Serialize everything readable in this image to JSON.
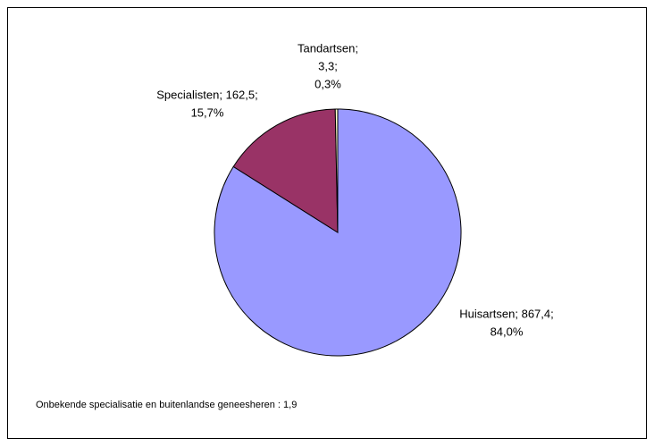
{
  "chart_data": {
    "type": "pie",
    "values": [
      867.4,
      162.5,
      3.3
    ],
    "labels": [
      [
        "Huisartsen; 867,4;",
        "84,0%"
      ],
      [
        "Specialisten; 162,5;",
        "15,7%"
      ],
      [
        "Tandartsen;",
        "3,3;",
        "0,3%"
      ]
    ],
    "colors": [
      "#9999ff",
      "#993366",
      "#ffffcc"
    ],
    "note": "Onbekende specialisatie en buitenlandse geneesheren : 1,9"
  }
}
